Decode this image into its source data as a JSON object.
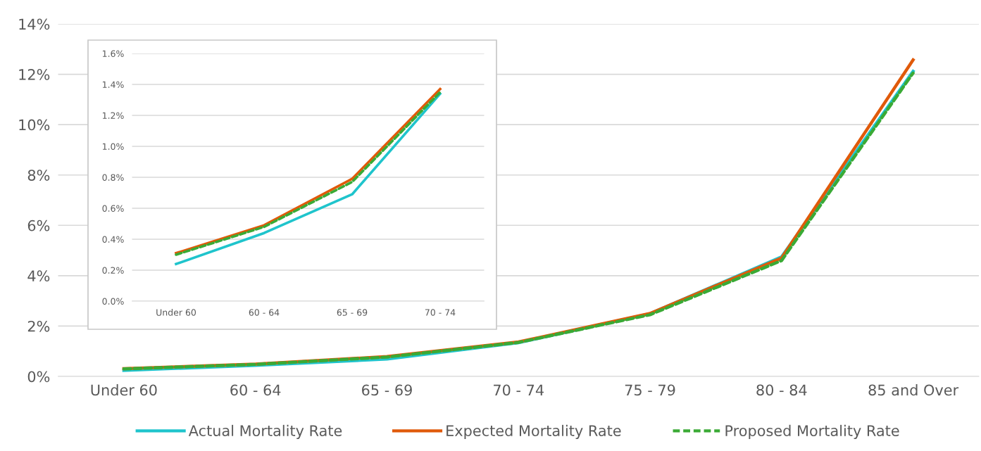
{
  "chart_data": [
    {
      "type": "line",
      "categories": [
        "Under 60",
        "60 - 64",
        "65 - 69",
        "70 - 74",
        "75 - 79",
        "80 - 84",
        "85 and Over"
      ],
      "series": [
        {
          "name": "Actual Mortality Rate",
          "color": "#1fc4cc",
          "line_style": "solid",
          "values": [
            0.24,
            0.44,
            0.69,
            1.34,
            2.49,
            4.75,
            12.12
          ]
        },
        {
          "name": "Expected Mortality Rate",
          "color": "#e05a0a",
          "line_style": "solid",
          "values": [
            0.31,
            0.49,
            0.79,
            1.37,
            2.5,
            4.7,
            12.57
          ]
        },
        {
          "name": "Proposed Mortality Rate",
          "color": "#3aaa35",
          "line_style": "dashed",
          "values": [
            0.3,
            0.48,
            0.77,
            1.35,
            2.45,
            4.6,
            12.05
          ]
        }
      ],
      "ylim": [
        0,
        14
      ],
      "yticks": [
        {
          "value": 0,
          "label": "0%"
        },
        {
          "value": 2,
          "label": "2%"
        },
        {
          "value": 4,
          "label": "4%"
        },
        {
          "value": 6,
          "label": "6%"
        },
        {
          "value": 8,
          "label": "8%"
        },
        {
          "value": 10,
          "label": "10%"
        },
        {
          "value": 12,
          "label": "12%"
        },
        {
          "value": 14,
          "label": "14%"
        }
      ],
      "grid": "y",
      "legend": "bottom"
    },
    {
      "type": "line",
      "categories": [
        "Under 60",
        "60 - 64",
        "65 - 69",
        "70 - 74"
      ],
      "series": [
        {
          "color": "#1fc4cc",
          "line_style": "solid",
          "values": [
            0.24,
            0.44,
            0.69,
            1.34
          ]
        },
        {
          "color": "#e05a0a",
          "line_style": "solid",
          "values": [
            0.31,
            0.49,
            0.79,
            1.37
          ]
        },
        {
          "color": "#3aaa35",
          "line_style": "dashed",
          "values": [
            0.3,
            0.48,
            0.77,
            1.35
          ]
        }
      ],
      "ylim": [
        0,
        1.6
      ],
      "yticks": [
        {
          "value": 0,
          "label": "0.0%"
        },
        {
          "value": 0.2,
          "label": "0.2%"
        },
        {
          "value": 0.4,
          "label": "0.4%"
        },
        {
          "value": 0.6,
          "label": "0.6%"
        },
        {
          "value": 0.8,
          "label": "0.8%"
        },
        {
          "value": 1.0,
          "label": "1.0%"
        },
        {
          "value": 1.2,
          "label": "1.2%"
        },
        {
          "value": 1.4,
          "label": "1.4%"
        },
        {
          "value": 1.6,
          "label": "1.6%"
        }
      ],
      "grid": "y",
      "legend": false
    }
  ]
}
